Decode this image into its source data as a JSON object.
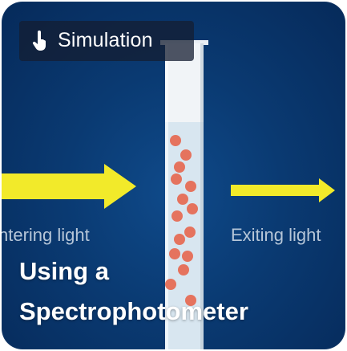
{
  "badge": {
    "icon": "hand-pointer-icon",
    "label": "Simulation"
  },
  "labels": {
    "entering": "ntering light",
    "exiting": "Exiting light"
  },
  "title": {
    "line1": "Using a",
    "line2": "Spectrophotometer"
  },
  "colors": {
    "background": "#0a3a72",
    "arrow": "#f2ea2a",
    "particle": "#e5735e",
    "label": "#b6c6d8"
  }
}
